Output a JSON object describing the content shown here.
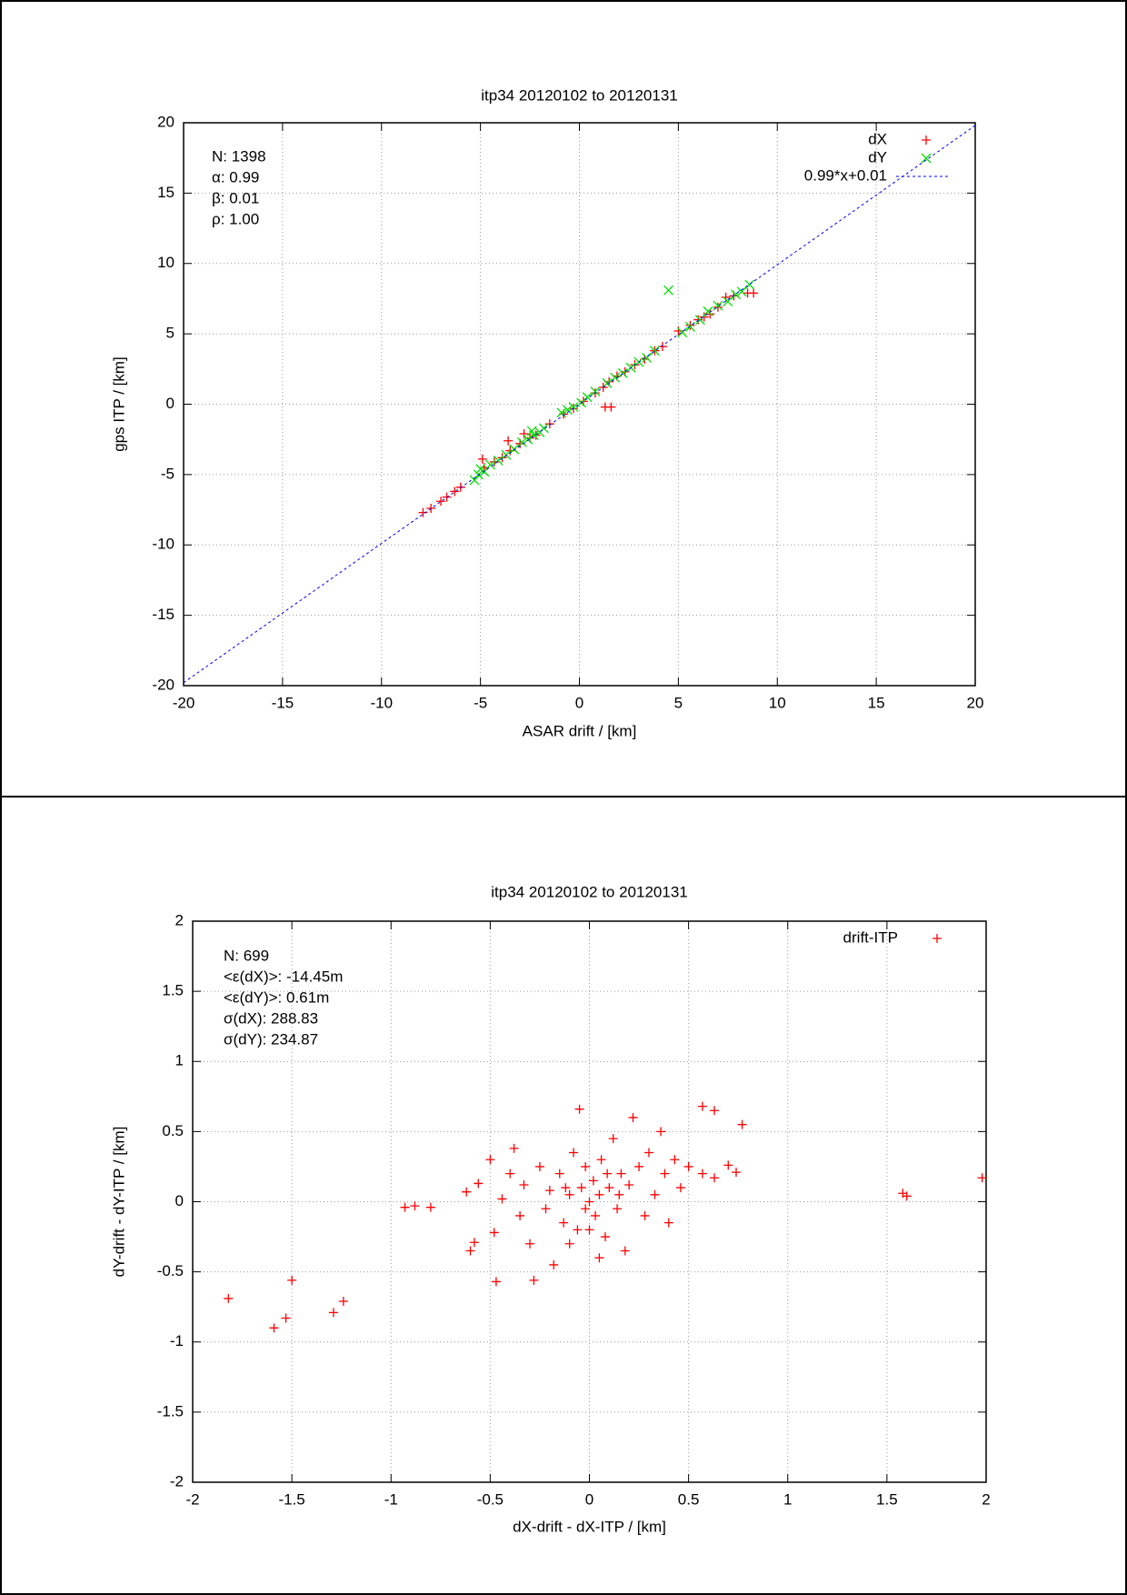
{
  "chart_data": [
    {
      "type": "scatter",
      "title": "itp34 20120102 to 20120131",
      "x_label": "ASAR drift / [km]",
      "y_label": "gps ITP / [km]",
      "xlim": [
        -20,
        20
      ],
      "ylim": [
        -20,
        20
      ],
      "xticks": [
        -20,
        -15,
        -10,
        -5,
        0,
        5,
        10,
        15,
        20
      ],
      "yticks": [
        -20,
        -15,
        -10,
        -5,
        0,
        5,
        10,
        15,
        20
      ],
      "grid": true,
      "legend": "top-right",
      "annotations": [
        "N: 1398",
        "α: 0.99",
        "β: 0.01",
        "ρ: 1.00"
      ],
      "series": [
        {
          "name": "dX",
          "color": "#ff0000",
          "marker": "plus",
          "x": [
            -7.9,
            -7.5,
            -7.0,
            -6.7,
            -6.3,
            -6.0,
            -4.8,
            -4.3,
            -3.9,
            -3.5,
            -3.0,
            -2.8,
            -2.5,
            -2.2,
            -1.5,
            -0.8,
            -0.3,
            0.2,
            0.8,
            1.2,
            1.5,
            1.3,
            1.6,
            1.9,
            2.3,
            2.8,
            3.3,
            3.8,
            4.2,
            5.0,
            5.6,
            6.0,
            6.3,
            6.6,
            7.0,
            7.4,
            7.8,
            8.5,
            8.8,
            -4.9,
            -3.6
          ],
          "y": [
            -7.7,
            -7.4,
            -6.9,
            -6.6,
            -6.2,
            -5.9,
            -4.5,
            -4.1,
            -3.8,
            -3.3,
            -2.8,
            -2.1,
            -2.4,
            -2.2,
            -1.4,
            -0.7,
            -0.3,
            0.2,
            0.8,
            1.2,
            1.6,
            -0.2,
            -0.2,
            2.0,
            2.3,
            2.8,
            3.2,
            3.8,
            4.1,
            5.2,
            5.6,
            6.0,
            6.2,
            6.4,
            6.9,
            7.6,
            7.7,
            7.9,
            7.9,
            -3.9,
            -2.6
          ]
        },
        {
          "name": "dY",
          "color": "#00e000",
          "marker": "cross",
          "x": [
            -5.3,
            -5.1,
            -4.8,
            -4.5,
            -4.1,
            -3.7,
            -3.3,
            -2.9,
            -2.6,
            -2.3,
            -2.0,
            -1.8,
            -0.9,
            -0.6,
            -0.3,
            0.1,
            0.4,
            0.8,
            1.4,
            1.8,
            2.2,
            2.6,
            3.0,
            3.4,
            3.8,
            4.5,
            5.2,
            5.6,
            6.1,
            6.5,
            7.0,
            7.5,
            7.9,
            8.2,
            8.6,
            -5.0,
            -2.4
          ],
          "y": [
            -5.4,
            -5.0,
            -4.8,
            -4.3,
            -4.0,
            -3.6,
            -3.2,
            -2.7,
            -2.5,
            -2.2,
            -2.0,
            -1.7,
            -0.6,
            -0.4,
            -0.2,
            0.1,
            0.5,
            0.9,
            1.5,
            1.9,
            2.2,
            2.6,
            3.0,
            3.3,
            3.8,
            8.1,
            5.1,
            5.5,
            6.0,
            6.6,
            7.0,
            7.3,
            7.8,
            8.0,
            8.5,
            -4.6,
            -1.9
          ]
        }
      ],
      "fit": {
        "name": "0.99*x+0.01",
        "slope": 0.99,
        "intercept": 0.01,
        "color": "#0000ff"
      }
    },
    {
      "type": "scatter",
      "title": "itp34 20120102 to 20120131",
      "x_label": "dX-drift - dX-ITP / [km]",
      "y_label": "dY-drift - dY-ITP / [km]",
      "xlim": [
        -2,
        2
      ],
      "ylim": [
        -2,
        2
      ],
      "xticks": [
        -2,
        -1.5,
        -1,
        -0.5,
        0,
        0.5,
        1,
        1.5,
        2
      ],
      "yticks": [
        -2,
        -1.5,
        -1,
        -0.5,
        0,
        0.5,
        1,
        1.5,
        2
      ],
      "grid": true,
      "legend": "top-right",
      "annotations": [
        "N: 699",
        "<ε(dX)>:  -14.45m",
        "<ε(dY)>: 0.61m",
        "σ(dX):  288.83",
        "σ(dY):  234.87"
      ],
      "series": [
        {
          "name": "drift-ITP",
          "color": "#ff0000",
          "marker": "plus",
          "x": [
            -1.82,
            -1.59,
            -1.53,
            -1.5,
            -1.29,
            -1.24,
            -0.93,
            -0.88,
            -0.8,
            1.58,
            1.6,
            1.98,
            0.57,
            0.63,
            0.77,
            -0.05,
            0.7,
            0.74,
            0.57,
            0.63,
            -0.62,
            -0.6,
            -0.58,
            -0.56,
            -0.5,
            -0.48,
            -0.47,
            -0.44,
            -0.4,
            -0.38,
            -0.35,
            -0.33,
            -0.3,
            -0.28,
            -0.25,
            -0.22,
            -0.2,
            -0.18,
            -0.15,
            -0.13,
            -0.1,
            -0.08,
            -0.06,
            -0.04,
            -0.02,
            0,
            0.02,
            0.03,
            0.05,
            0.06,
            0.08,
            0.1,
            0.12,
            0.14,
            0.16,
            0.18,
            0.2,
            0.22,
            0.25,
            0.28,
            0.3,
            0.33,
            0.36,
            0.38,
            0.4,
            0.43,
            0.46,
            0.5,
            -0.1,
            0.0,
            0.05,
            -0.02,
            0.09,
            -0.12,
            0.15
          ],
          "y": [
            -0.69,
            -0.9,
            -0.83,
            -0.56,
            -0.79,
            -0.71,
            -0.04,
            -0.03,
            -0.04,
            0.06,
            0.04,
            0.17,
            0.68,
            0.65,
            0.55,
            0.66,
            0.26,
            0.21,
            0.2,
            0.17,
            0.07,
            -0.35,
            -0.29,
            0.13,
            0.3,
            -0.22,
            -0.57,
            0.02,
            0.2,
            0.38,
            -0.1,
            0.12,
            -0.3,
            -0.56,
            0.25,
            -0.05,
            0.08,
            -0.45,
            0.2,
            -0.15,
            0.05,
            0.35,
            -0.2,
            0.1,
            -0.05,
            0.0,
            0.15,
            -0.1,
            0.05,
            0.3,
            -0.25,
            0.1,
            0.45,
            -0.05,
            0.2,
            -0.35,
            0.12,
            0.6,
            0.25,
            -0.1,
            0.35,
            0.05,
            0.5,
            0.2,
            -0.15,
            0.3,
            0.1,
            0.25,
            -0.3,
            -0.2,
            -0.4,
            0.25,
            0.2,
            0.1,
            0.05
          ]
        }
      ]
    }
  ]
}
